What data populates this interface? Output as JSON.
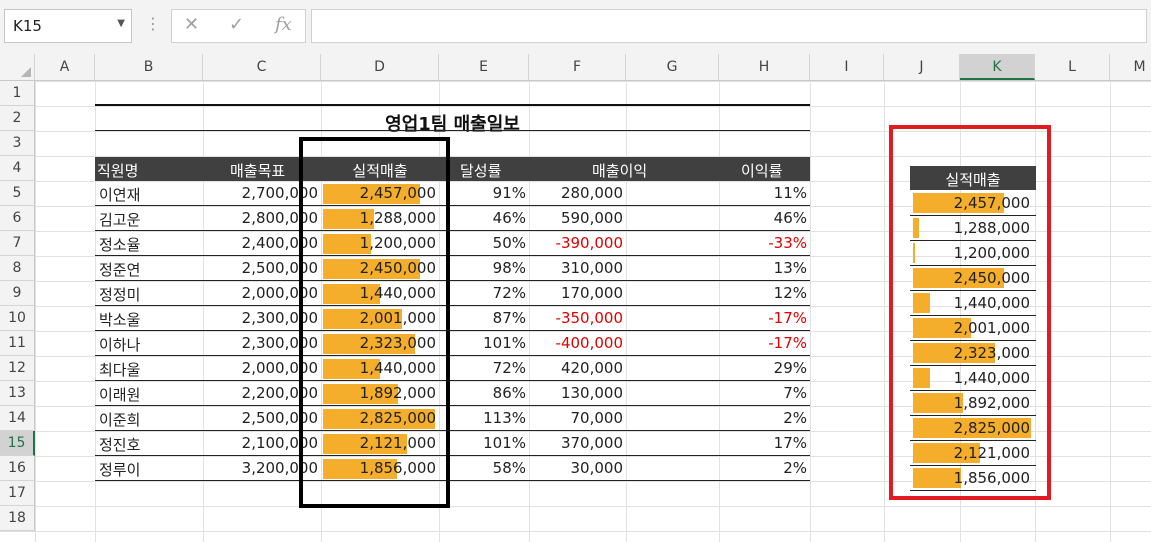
{
  "formula_bar": {
    "name_box": "K15",
    "cancel_icon": "✕",
    "enter_icon": "✓",
    "fx_label": "fx",
    "formula": ""
  },
  "columns": [
    "A",
    "B",
    "C",
    "D",
    "E",
    "F",
    "G",
    "H",
    "I",
    "J",
    "K",
    "L",
    "M"
  ],
  "selected_column": "K",
  "rows": [
    "1",
    "2",
    "3",
    "4",
    "5",
    "6",
    "7",
    "8",
    "9",
    "10",
    "11",
    "12",
    "13",
    "14",
    "15",
    "16",
    "17",
    "18"
  ],
  "selected_row": "15",
  "sheet": {
    "title": "영업1팀 매출일보",
    "headers": {
      "name": "직원명",
      "target": "매출목표",
      "actual": "실적매출",
      "rate": "달성률",
      "profit": "매출이익",
      "margin": "이익률"
    },
    "records": [
      {
        "name": "이연재",
        "target": "2,700,000",
        "actual": "2,457,000",
        "rate": "91%",
        "profit": "280,000",
        "margin": "11%",
        "negative": false,
        "actual_value": 2457000
      },
      {
        "name": "김고운",
        "target": "2,800,000",
        "actual": "1,288,000",
        "rate": "46%",
        "profit": "590,000",
        "margin": "46%",
        "negative": false,
        "actual_value": 1288000
      },
      {
        "name": "정소율",
        "target": "2,400,000",
        "actual": "1,200,000",
        "rate": "50%",
        "profit": "-390,000",
        "margin": "-33%",
        "negative": true,
        "actual_value": 1200000
      },
      {
        "name": "정준연",
        "target": "2,500,000",
        "actual": "2,450,000",
        "rate": "98%",
        "profit": "310,000",
        "margin": "13%",
        "negative": false,
        "actual_value": 2450000
      },
      {
        "name": "정정미",
        "target": "2,000,000",
        "actual": "1,440,000",
        "rate": "72%",
        "profit": "170,000",
        "margin": "12%",
        "negative": false,
        "actual_value": 1440000
      },
      {
        "name": "박소울",
        "target": "2,300,000",
        "actual": "2,001,000",
        "rate": "87%",
        "profit": "-350,000",
        "margin": "-17%",
        "negative": true,
        "actual_value": 2001000
      },
      {
        "name": "이하나",
        "target": "2,300,000",
        "actual": "2,323,000",
        "rate": "101%",
        "profit": "-400,000",
        "margin": "-17%",
        "negative": true,
        "actual_value": 2323000
      },
      {
        "name": "최다울",
        "target": "2,000,000",
        "actual": "1,440,000",
        "rate": "72%",
        "profit": "420,000",
        "margin": "29%",
        "negative": false,
        "actual_value": 1440000
      },
      {
        "name": "이래원",
        "target": "2,200,000",
        "actual": "1,892,000",
        "rate": "86%",
        "profit": "130,000",
        "margin": "7%",
        "negative": false,
        "actual_value": 1892000
      },
      {
        "name": "이준희",
        "target": "2,500,000",
        "actual": "2,825,000",
        "rate": "113%",
        "profit": "70,000",
        "margin": "2%",
        "negative": false,
        "actual_value": 2825000
      },
      {
        "name": "정진호",
        "target": "2,100,000",
        "actual": "2,121,000",
        "rate": "101%",
        "profit": "370,000",
        "margin": "17%",
        "negative": false,
        "actual_value": 2121000
      },
      {
        "name": "정루이",
        "target": "3,200,000",
        "actual": "1,856,000",
        "rate": "58%",
        "profit": "30,000",
        "margin": "2%",
        "negative": false,
        "actual_value": 1856000
      }
    ]
  },
  "side_table": {
    "header": "실적매출"
  },
  "colors": {
    "bar": "#f5ad2c",
    "header_bg": "#404040",
    "negative": "#e00000",
    "highlight_black": "#000000",
    "highlight_red": "#e21b22",
    "selection": "#217346"
  }
}
